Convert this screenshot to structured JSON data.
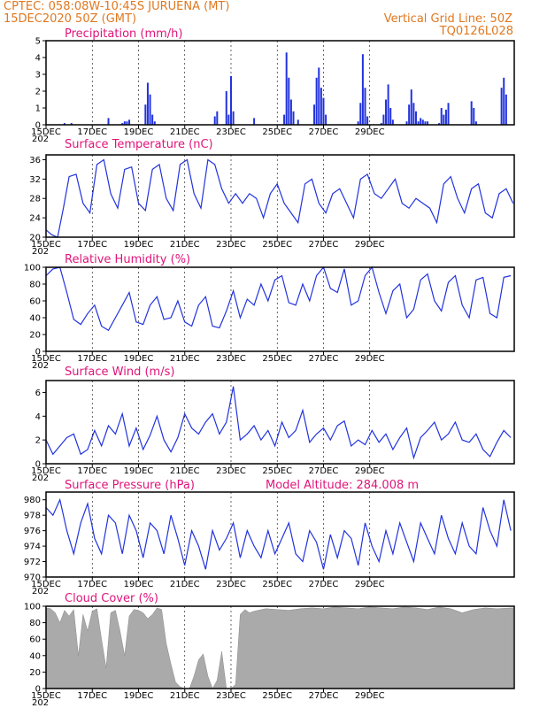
{
  "header": {
    "line1": "CPTEC:   058:08W-10:45S   JURUENA (MT)",
    "line2": "15DEC2020 50Z (GMT)",
    "right1": "Vertical Grid Line: 50Z",
    "right2": "TQ0126L028"
  },
  "x_ticks": [
    "15DEC",
    "17DEC",
    "19DEC",
    "21DEC",
    "23DEC",
    "25DEC",
    "27DEC",
    "29DEC"
  ],
  "x_ticks_sub": "202",
  "colors": {
    "series": "#2233dd",
    "cloud": "#aaaaaa",
    "header": "#e07820",
    "title": "#e0147a"
  },
  "chart_data": [
    {
      "type": "bar",
      "title": "Precipitation (mm/h)",
      "ylim": [
        0,
        5
      ],
      "yticks": [
        0,
        1,
        2,
        3,
        4,
        5
      ],
      "x": [
        0.8,
        1.1,
        2.7,
        3.3,
        3.4,
        3.5,
        3.6,
        4.3,
        4.4,
        4.5,
        4.6,
        4.7,
        7.3,
        7.4,
        7.8,
        7.9,
        8.0,
        8.1,
        9.0,
        10.3,
        10.4,
        10.5,
        10.6,
        10.7,
        10.9,
        11.6,
        11.7,
        11.8,
        11.9,
        12.0,
        12.1,
        13.5,
        13.6,
        13.7,
        13.8,
        13.9,
        14.5,
        14.6,
        14.7,
        14.8,
        14.9,
        15.0,
        15.6,
        15.7,
        15.8,
        15.9,
        16.0,
        16.1,
        16.2,
        16.3,
        16.4,
        16.5,
        17.0,
        17.1,
        17.2,
        17.3,
        17.4,
        18.4,
        18.5,
        18.6,
        19.7,
        19.8,
        19.9
      ],
      "values": [
        0.1,
        0.1,
        0.4,
        0.1,
        0.2,
        0.2,
        0.3,
        1.2,
        2.5,
        1.8,
        0.6,
        0.2,
        0.5,
        0.8,
        2.0,
        0.6,
        2.9,
        0.8,
        0.4,
        0.6,
        4.3,
        2.8,
        1.5,
        0.8,
        0.3,
        1.2,
        2.8,
        3.4,
        2.2,
        1.6,
        0.6,
        0.2,
        1.3,
        4.2,
        2.2,
        0.5,
        0.1,
        0.6,
        1.5,
        2.4,
        1.0,
        0.3,
        0.2,
        1.2,
        2.1,
        1.3,
        0.8,
        0.2,
        0.4,
        0.3,
        0.2,
        0.2,
        0.1,
        1.0,
        0.6,
        0.9,
        1.3,
        1.4,
        1.0,
        0.2,
        2.2,
        2.8,
        1.8
      ]
    },
    {
      "type": "line",
      "title": "Surface Temperature (nC)",
      "ylim": [
        20,
        37
      ],
      "yticks": [
        20,
        24,
        28,
        32,
        36
      ],
      "x": [
        0,
        0.25,
        0.5,
        0.75,
        1,
        1.3,
        1.6,
        1.9,
        2.2,
        2.5,
        2.8,
        3.1,
        3.4,
        3.7,
        4.0,
        4.3,
        4.6,
        4.9,
        5.2,
        5.5,
        5.8,
        6.1,
        6.4,
        6.7,
        7.0,
        7.3,
        7.6,
        7.9,
        8.2,
        8.5,
        8.8,
        9.1,
        9.4,
        9.7,
        10.0,
        10.3,
        10.6,
        10.9,
        11.2,
        11.5,
        11.8,
        12.1,
        12.4,
        12.7,
        13.0,
        13.3,
        13.6,
        13.9,
        14.2,
        14.5,
        14.8,
        15.1,
        15.4,
        15.7,
        16.0,
        16.3,
        16.6,
        16.9,
        17.2,
        17.5,
        17.8,
        18.1,
        18.4,
        18.7,
        19.0,
        19.3,
        19.6,
        19.9,
        20.2
      ],
      "values": [
        21.5,
        20.5,
        20.0,
        26,
        32.5,
        33,
        27,
        25,
        35,
        36,
        29,
        26,
        34,
        34.5,
        27,
        25.5,
        34,
        35,
        28,
        25.5,
        35,
        36,
        29,
        26,
        36,
        35,
        30,
        27,
        29,
        27,
        29,
        28,
        24,
        29,
        31,
        27,
        25,
        23,
        31,
        32,
        27,
        25,
        29,
        30,
        27,
        24,
        32,
        33,
        29,
        28,
        30,
        32,
        27,
        26,
        28,
        27,
        26,
        23,
        31,
        32.5,
        28,
        25,
        30,
        31,
        25,
        24,
        29,
        30,
        27
      ]
    },
    {
      "type": "line",
      "title": "Relative Humidity (%)",
      "ylim": [
        0,
        100
      ],
      "yticks": [
        0,
        20,
        40,
        60,
        80,
        100
      ],
      "x": [
        0,
        0.3,
        0.6,
        0.9,
        1.2,
        1.5,
        1.8,
        2.1,
        2.4,
        2.7,
        3.0,
        3.3,
        3.6,
        3.9,
        4.2,
        4.5,
        4.8,
        5.1,
        5.4,
        5.7,
        6.0,
        6.3,
        6.6,
        6.9,
        7.2,
        7.5,
        7.8,
        8.1,
        8.4,
        8.7,
        9.0,
        9.3,
        9.6,
        9.9,
        10.2,
        10.5,
        10.8,
        11.1,
        11.4,
        11.7,
        12.0,
        12.3,
        12.6,
        12.9,
        13.2,
        13.5,
        13.8,
        14.1,
        14.4,
        14.7,
        15.0,
        15.3,
        15.6,
        15.9,
        16.2,
        16.5,
        16.8,
        17.1,
        17.4,
        17.7,
        18.0,
        18.3,
        18.6,
        18.9,
        19.2,
        19.5,
        19.8,
        20.1
      ],
      "values": [
        90,
        98,
        100,
        70,
        38,
        32,
        45,
        55,
        30,
        25,
        40,
        55,
        70,
        35,
        32,
        55,
        65,
        38,
        40,
        60,
        35,
        30,
        55,
        65,
        30,
        28,
        48,
        72,
        40,
        62,
        55,
        80,
        60,
        85,
        90,
        58,
        55,
        80,
        60,
        90,
        100,
        75,
        70,
        98,
        55,
        60,
        90,
        100,
        70,
        45,
        72,
        80,
        40,
        50,
        85,
        92,
        60,
        48,
        82,
        90,
        55,
        40,
        85,
        88,
        45,
        40,
        88,
        90
      ]
    },
    {
      "type": "line",
      "title": "Surface Wind (m/s)",
      "ylim": [
        0,
        7
      ],
      "yticks": [
        0,
        2,
        4,
        6
      ],
      "x": [
        0,
        0.3,
        0.6,
        0.9,
        1.2,
        1.5,
        1.8,
        2.1,
        2.4,
        2.7,
        3.0,
        3.3,
        3.6,
        3.9,
        4.2,
        4.5,
        4.8,
        5.1,
        5.4,
        5.7,
        6.0,
        6.3,
        6.6,
        6.9,
        7.2,
        7.5,
        7.8,
        8.1,
        8.4,
        8.7,
        9.0,
        9.3,
        9.6,
        9.9,
        10.2,
        10.5,
        10.8,
        11.1,
        11.4,
        11.7,
        12.0,
        12.3,
        12.6,
        12.9,
        13.2,
        13.5,
        13.8,
        14.1,
        14.4,
        14.7,
        15.0,
        15.3,
        15.6,
        15.9,
        16.2,
        16.5,
        16.8,
        17.1,
        17.4,
        17.7,
        18.0,
        18.3,
        18.6,
        18.9,
        19.2,
        19.5,
        19.8,
        20.1
      ],
      "values": [
        2.0,
        0.8,
        1.5,
        2.2,
        2.5,
        0.8,
        1.2,
        2.8,
        1.5,
        3.2,
        2.5,
        4.2,
        1.5,
        3.0,
        1.2,
        2.4,
        4.0,
        2.0,
        1.0,
        2.2,
        4.2,
        3.0,
        2.5,
        3.5,
        4.2,
        2.5,
        3.5,
        6.5,
        2.0,
        2.5,
        3.2,
        2.0,
        2.8,
        1.5,
        3.5,
        2.2,
        2.8,
        4.5,
        1.8,
        2.5,
        3.0,
        2.0,
        3.2,
        3.6,
        1.5,
        2.0,
        1.6,
        2.8,
        1.8,
        2.5,
        1.2,
        2.2,
        3.0,
        0.5,
        2.2,
        2.8,
        3.5,
        2.0,
        2.5,
        3.5,
        2.0,
        1.8,
        2.5,
        1.2,
        0.6,
        1.8,
        2.8,
        2.2
      ]
    },
    {
      "type": "line",
      "title": "Surface Pressure (hPa)",
      "annotation": "Model Altitude: 284.008 m",
      "ylim": [
        970,
        981
      ],
      "yticks": [
        970,
        972,
        974,
        976,
        978,
        980
      ],
      "x": [
        0,
        0.3,
        0.6,
        0.9,
        1.2,
        1.5,
        1.8,
        2.1,
        2.4,
        2.7,
        3.0,
        3.3,
        3.6,
        3.9,
        4.2,
        4.5,
        4.8,
        5.1,
        5.4,
        5.7,
        6.0,
        6.3,
        6.6,
        6.9,
        7.2,
        7.5,
        7.8,
        8.1,
        8.4,
        8.7,
        9.0,
        9.3,
        9.6,
        9.9,
        10.2,
        10.5,
        10.8,
        11.1,
        11.4,
        11.7,
        12.0,
        12.3,
        12.6,
        12.9,
        13.2,
        13.5,
        13.8,
        14.1,
        14.4,
        14.7,
        15.0,
        15.3,
        15.6,
        15.9,
        16.2,
        16.5,
        16.8,
        17.1,
        17.4,
        17.7,
        18.0,
        18.3,
        18.6,
        18.9,
        19.2,
        19.5,
        19.8,
        20.1
      ],
      "values": [
        979,
        978,
        980,
        976,
        973,
        977,
        979.5,
        975,
        973,
        978,
        977,
        973,
        978,
        976,
        972.5,
        977,
        976,
        973,
        978,
        975,
        971.5,
        976,
        974,
        971,
        976,
        973.5,
        975,
        977,
        972.5,
        976,
        974,
        972.5,
        976,
        973,
        975,
        977,
        973,
        972,
        976,
        974.5,
        971,
        975.5,
        972.5,
        976,
        975,
        971.5,
        977,
        974,
        972,
        976,
        973,
        977,
        974.5,
        972,
        977,
        975,
        973,
        978,
        975,
        973,
        977,
        974,
        973,
        979,
        976,
        974,
        980,
        976
      ]
    },
    {
      "type": "area",
      "title": "Cloud Cover (%)",
      "ylim": [
        0,
        100
      ],
      "yticks": [
        0,
        20,
        40,
        60,
        80,
        100
      ],
      "x": [
        0,
        0.2,
        0.4,
        0.6,
        0.8,
        1.0,
        1.2,
        1.4,
        1.6,
        1.8,
        2.0,
        2.2,
        2.4,
        2.6,
        2.8,
        3.0,
        3.2,
        3.4,
        3.6,
        3.8,
        4.0,
        4.2,
        4.4,
        4.6,
        4.8,
        5.0,
        5.2,
        5.4,
        5.6,
        5.8,
        6.0,
        6.2,
        6.4,
        6.6,
        6.8,
        7.0,
        7.2,
        7.4,
        7.6,
        7.8,
        8.0,
        8.2,
        8.4,
        8.6,
        8.8,
        9.0,
        9.5,
        10.0,
        10.5,
        11.0,
        11.5,
        12.0,
        12.5,
        13.0,
        13.5,
        14.0,
        14.5,
        15.0,
        15.5,
        16.0,
        16.5,
        17.0,
        17.5,
        18.0,
        18.5,
        19.0,
        19.5,
        20.2
      ],
      "values": [
        98,
        97,
        92,
        80,
        95,
        88,
        96,
        40,
        90,
        70,
        94,
        97,
        60,
        25,
        92,
        95,
        70,
        40,
        88,
        96,
        95,
        92,
        85,
        90,
        98,
        96,
        55,
        30,
        8,
        2,
        0,
        0,
        15,
        35,
        42,
        15,
        0,
        10,
        45,
        0,
        0,
        5,
        90,
        96,
        92,
        94,
        97,
        96,
        95,
        97,
        98,
        97,
        99,
        98,
        97,
        99,
        98,
        97,
        99,
        98,
        96,
        99,
        97,
        92,
        96,
        98,
        97,
        98
      ]
    }
  ]
}
